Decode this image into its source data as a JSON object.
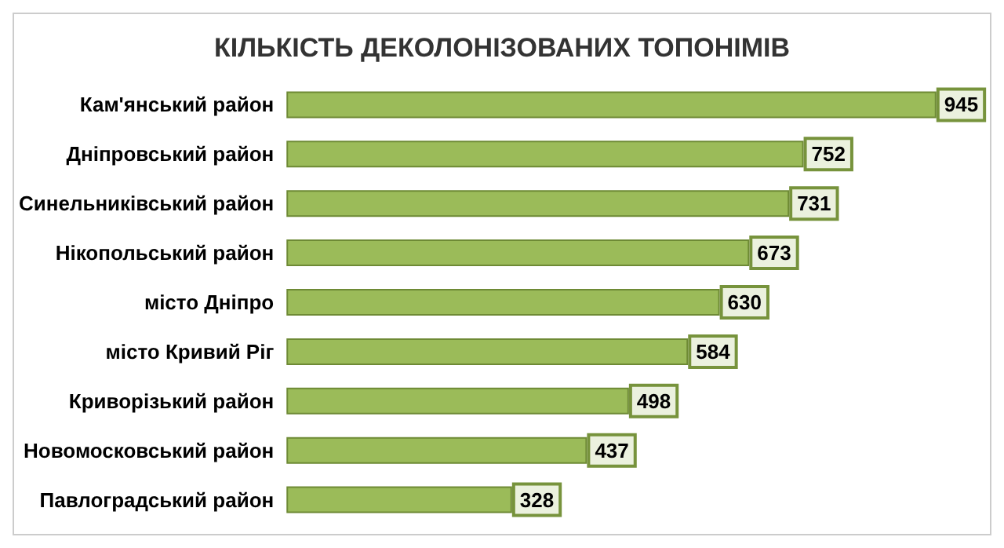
{
  "chart_data": {
    "type": "bar",
    "orientation": "horizontal",
    "title": "КІЛЬКІСТЬ ДЕКОЛОНІЗОВАНИХ ТОПОНІМІВ",
    "categories": [
      "Кам'янський район",
      "Дніпровський район",
      "Синельниківський район",
      "Нікопольський район",
      "місто Дніпро",
      "місто Кривий Ріг",
      "Криворізький район",
      "Новомосковський район",
      "Павлоградський район"
    ],
    "values": [
      945,
      752,
      731,
      673,
      630,
      584,
      498,
      437,
      328
    ],
    "color": "#9bbb59",
    "data_labels": true
  }
}
